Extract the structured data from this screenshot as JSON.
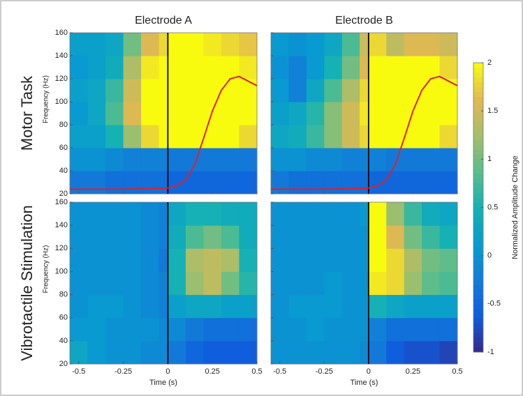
{
  "chart_data": [
    {
      "type": "heatmap",
      "title": "Electrode A",
      "row_label": "Motor Task",
      "ylabel": "Frequency (Hz)",
      "xlim": [
        -0.55,
        0.5
      ],
      "ylim": [
        20,
        160
      ],
      "xticks": [
        -0.5,
        -0.25,
        0,
        0.25,
        0.5
      ],
      "yticks": [
        20,
        40,
        60,
        80,
        100,
        120,
        140,
        160
      ],
      "xtick_labels": false,
      "ytick_labels": true,
      "vline": 0,
      "xbins": [
        -0.55,
        -0.45,
        -0.35,
        -0.25,
        -0.15,
        -0.05,
        0,
        0.1,
        0.2,
        0.3,
        0.4,
        0.5
      ],
      "ybins": [
        20,
        40,
        60,
        80,
        100,
        120,
        140,
        160
      ],
      "z": [
        [
          -0.3,
          -0.3,
          -0.4,
          -0.4,
          -0.4,
          -0.4,
          -0.5,
          -0.5,
          -0.5,
          -0.5,
          -0.5
        ],
        [
          0,
          0,
          -0.1,
          -0.2,
          -0.2,
          -0.2,
          -0.3,
          -0.3,
          -0.3,
          -0.3,
          -0.3
        ],
        [
          0.2,
          0.2,
          0.5,
          1.2,
          1.8,
          2,
          2,
          2,
          2,
          2,
          1.8
        ],
        [
          0.1,
          0.3,
          0.8,
          1.6,
          2,
          2,
          2,
          2,
          2,
          2,
          2
        ],
        [
          0.2,
          0.3,
          0.7,
          1.5,
          2,
          2,
          2,
          2,
          2,
          2,
          2
        ],
        [
          0.1,
          0.2,
          0.4,
          1.3,
          1.9,
          2,
          2,
          2,
          2,
          2,
          1.9
        ],
        [
          0.2,
          0.2,
          0.3,
          1.0,
          1.6,
          1.8,
          2,
          2,
          1.9,
          1.8,
          1.7
        ]
      ],
      "overlay": {
        "color": "#e0202a",
        "x": [
          -0.55,
          -0.25,
          0,
          0.05,
          0.1,
          0.15,
          0.2,
          0.25,
          0.3,
          0.35,
          0.4,
          0.45,
          0.5
        ],
        "y": [
          24,
          24,
          25,
          27,
          32,
          45,
          68,
          92,
          110,
          120,
          122,
          118,
          114
        ]
      }
    },
    {
      "type": "heatmap",
      "title": "Electrode B",
      "xlim": [
        -0.55,
        0.5
      ],
      "ylim": [
        20,
        160
      ],
      "xticks": [
        -0.5,
        -0.25,
        0,
        0.25,
        0.5
      ],
      "yticks": [
        20,
        40,
        60,
        80,
        100,
        120,
        140,
        160
      ],
      "xtick_labels": false,
      "ytick_labels": false,
      "vline": 0,
      "xbins": [
        -0.55,
        -0.45,
        -0.35,
        -0.25,
        -0.15,
        -0.05,
        0,
        0.1,
        0.2,
        0.3,
        0.4,
        0.5
      ],
      "ybins": [
        20,
        40,
        60,
        80,
        100,
        120,
        140,
        160
      ],
      "z": [
        [
          -0.3,
          -0.4,
          -0.4,
          -0.4,
          -0.4,
          -0.4,
          -0.5,
          -0.5,
          -0.5,
          -0.5,
          -0.5
        ],
        [
          0,
          0,
          -0.1,
          -0.1,
          -0.2,
          -0.2,
          -0.2,
          -0.3,
          -0.3,
          -0.3,
          -0.3
        ],
        [
          0.3,
          0.4,
          0.7,
          1.1,
          1.5,
          1.8,
          2,
          2,
          2,
          2,
          1.8
        ],
        [
          0.2,
          0.3,
          0.6,
          1.1,
          1.5,
          1.9,
          2,
          2,
          2,
          2,
          2
        ],
        [
          0.1,
          -0.2,
          0.3,
          0.8,
          1.3,
          1.8,
          2,
          2,
          2,
          2,
          2
        ],
        [
          0,
          -0.2,
          0.1,
          0.5,
          1.0,
          1.6,
          2,
          2,
          2,
          2,
          1.8
        ],
        [
          0.1,
          0,
          0.1,
          0.3,
          0.8,
          1.5,
          1.8,
          1.4,
          1.6,
          1.6,
          1.5
        ]
      ],
      "overlay": {
        "color": "#e0202a",
        "x": [
          -0.55,
          -0.25,
          0,
          0.05,
          0.1,
          0.15,
          0.2,
          0.25,
          0.3,
          0.35,
          0.4,
          0.45,
          0.5
        ],
        "y": [
          24,
          24,
          25,
          27,
          32,
          45,
          68,
          92,
          110,
          120,
          122,
          118,
          114
        ]
      }
    },
    {
      "type": "heatmap",
      "row_label": "Vibrotactile Stimulation",
      "ylabel": "Frequency (Hz)",
      "xlabel": "Time (s)",
      "xlim": [
        -0.55,
        0.5
      ],
      "ylim": [
        20,
        160
      ],
      "xticks": [
        -0.5,
        -0.25,
        0,
        0.25,
        0.5
      ],
      "yticks": [
        20,
        40,
        60,
        80,
        100,
        120,
        140,
        160
      ],
      "xtick_labels": true,
      "ytick_labels": true,
      "vline": 0,
      "xbins": [
        -0.55,
        -0.45,
        -0.35,
        -0.25,
        -0.15,
        -0.05,
        0,
        0.1,
        0.2,
        0.3,
        0.4,
        0.5
      ],
      "ybins": [
        20,
        40,
        60,
        80,
        100,
        120,
        140,
        160
      ],
      "z": [
        [
          0.3,
          0.1,
          0,
          0,
          -0.1,
          -0.1,
          -0.3,
          -0.5,
          -0.6,
          -0.6,
          -0.6
        ],
        [
          0.1,
          0.1,
          0,
          0,
          0,
          -0.1,
          -0.1,
          -0.3,
          -0.4,
          -0.4,
          -0.4
        ],
        [
          0,
          0.1,
          0.1,
          0,
          -0.1,
          -0.2,
          0.2,
          0.3,
          0.3,
          0.2,
          0.2
        ],
        [
          0,
          0,
          0,
          0,
          -0.1,
          -0.2,
          0.5,
          1.2,
          1.4,
          1.0,
          0.6
        ],
        [
          0,
          0,
          0,
          0,
          -0.1,
          -0.3,
          0.5,
          1.3,
          1.4,
          1.3,
          0.5
        ],
        [
          0,
          0,
          0,
          0,
          -0.1,
          -0.2,
          0.4,
          0.8,
          1.0,
          0.8,
          0.4
        ],
        [
          0,
          0,
          0,
          0,
          -0.1,
          -0.2,
          0.3,
          0.5,
          0.5,
          0.4,
          0.4
        ]
      ]
    },
    {
      "type": "heatmap",
      "xlabel": "Time (s)",
      "xlim": [
        -0.55,
        0.5
      ],
      "ylim": [
        20,
        160
      ],
      "xticks": [
        -0.5,
        -0.25,
        0,
        0.25,
        0.5
      ],
      "yticks": [
        20,
        40,
        60,
        80,
        100,
        120,
        140,
        160
      ],
      "xtick_labels": true,
      "ytick_labels": false,
      "vline": 0,
      "xbins": [
        -0.55,
        -0.45,
        -0.35,
        -0.25,
        -0.15,
        -0.05,
        0,
        0.1,
        0.2,
        0.3,
        0.4,
        0.5
      ],
      "ybins": [
        20,
        40,
        60,
        80,
        100,
        120,
        140,
        160
      ],
      "z": [
        [
          0,
          0,
          0,
          0,
          0,
          -0.1,
          -0.3,
          -0.6,
          -0.7,
          -0.7,
          -0.8
        ],
        [
          0,
          0,
          0.1,
          0,
          0,
          0,
          -0.2,
          -0.4,
          -0.4,
          -0.4,
          -0.4
        ],
        [
          0,
          0.1,
          0.1,
          0.1,
          0,
          0,
          0.5,
          0.3,
          0.2,
          0.2,
          0.2
        ],
        [
          0,
          0,
          0,
          0.1,
          0,
          0,
          1.9,
          1.8,
          1.2,
          0.9,
          0.8
        ],
        [
          0,
          0,
          0,
          0,
          0,
          0,
          2,
          1.8,
          1.3,
          1.0,
          0.9
        ],
        [
          0,
          0,
          0,
          0,
          0,
          0,
          2,
          1.6,
          1.0,
          0.7,
          0.5
        ],
        [
          0,
          0,
          0,
          0,
          0,
          0.1,
          2,
          1.2,
          0.7,
          0.4,
          0.3
        ]
      ]
    },
    {
      "type": "colorbar",
      "label": "Normalized Amplitude Change",
      "clim": [
        -1,
        2
      ],
      "ticks": [
        -1,
        -0.5,
        0,
        0.5,
        1,
        1.5,
        2
      ],
      "colormap": "parula"
    }
  ]
}
